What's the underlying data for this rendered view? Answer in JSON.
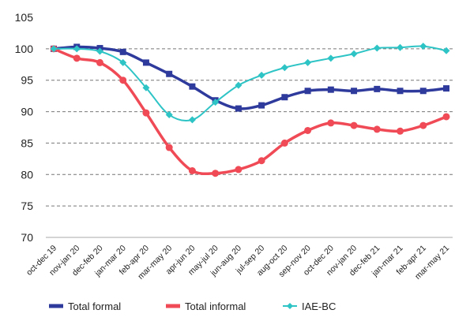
{
  "chart_data": {
    "type": "line",
    "categories": [
      "oct-dec 19",
      "nov-jan 20",
      "dec-feb 20",
      "jan-mar 20",
      "feb-apr 20",
      "mar-may 20",
      "apr-jun 20",
      "may-jul 20",
      "jun-aug 20",
      "jul-sep 20",
      "aug-oct 20",
      "sep-nov 20",
      "oct-dec 20",
      "nov-jan 20",
      "dec-feb 21",
      "jan-mar 21",
      "feb-apr 21",
      "mar-may 21"
    ],
    "series": [
      {
        "name": "Total formal",
        "color": "#2e3a9c",
        "marker": "square",
        "values": [
          100,
          100.3,
          100.1,
          99.5,
          97.8,
          96,
          94,
          91.8,
          90.5,
          91,
          92.3,
          93.3,
          93.5,
          93.3,
          93.6,
          93.3,
          93.3,
          93.7
        ]
      },
      {
        "name": "Total informal",
        "color": "#ef4a55",
        "marker": "circle",
        "values": [
          100,
          98.5,
          97.8,
          95,
          89.8,
          84.3,
          80.6,
          80.2,
          80.8,
          82.2,
          85,
          87,
          88.2,
          87.8,
          87.2,
          86.9,
          87.8,
          89.2
        ]
      },
      {
        "name": "IAE-BC",
        "color": "#2ec4c6",
        "marker": "diamond",
        "values": [
          100,
          100,
          99.6,
          97.8,
          93.8,
          89.5,
          88.7,
          91.5,
          94.2,
          95.8,
          97,
          97.8,
          98.5,
          99.2,
          100.1,
          100.2,
          100.4,
          99.7
        ]
      }
    ],
    "ylim": [
      70,
      105
    ],
    "yticks": [
      70,
      75,
      80,
      85,
      90,
      95,
      100,
      105
    ],
    "grid": true
  }
}
